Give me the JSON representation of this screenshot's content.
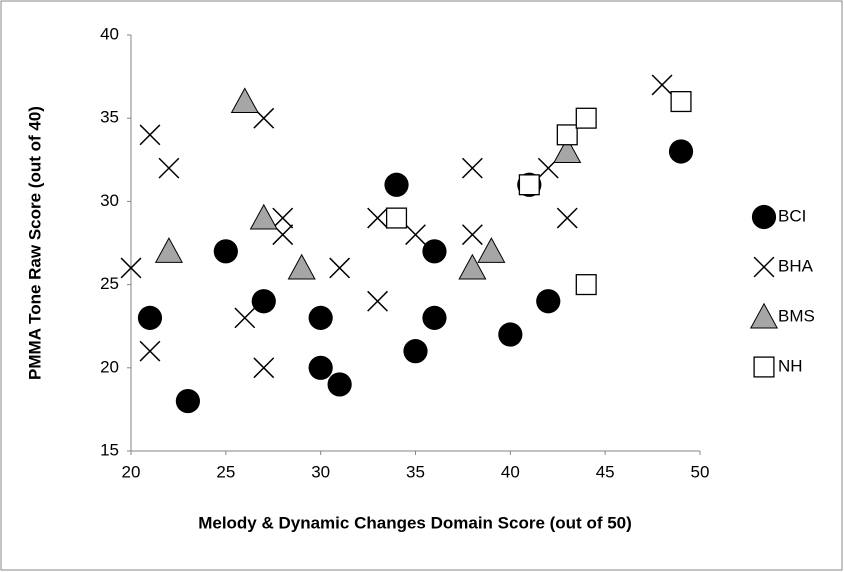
{
  "chart_data": {
    "type": "scatter",
    "xlabel": "Melody & Dynamic Changes Domain Score (out of 50)",
    "ylabel": "PMMA Tone Raw Score (out of 40)",
    "xlim": [
      20,
      50
    ],
    "xticks": [
      20,
      25,
      30,
      35,
      40,
      45,
      50
    ],
    "ylim": [
      15,
      40
    ],
    "yticks": [
      15,
      20,
      25,
      30,
      35,
      40
    ],
    "grid": false,
    "legend": "right",
    "series": [
      {
        "name": "BCI",
        "marker": "circle",
        "color": "#000000",
        "x": [
          21,
          23,
          25,
          27,
          30,
          30,
          31,
          34,
          35,
          36,
          36,
          40,
          41,
          42,
          49
        ],
        "values": [
          23,
          18,
          27,
          24,
          23,
          20,
          19,
          31,
          21,
          27,
          23,
          22,
          31,
          24,
          33
        ]
      },
      {
        "name": "BHA",
        "marker": "x",
        "color": "#000000",
        "x": [
          20,
          21,
          21,
          22,
          26,
          27,
          27,
          28,
          28,
          31,
          33,
          33,
          35,
          38,
          38,
          42,
          43,
          48
        ],
        "values": [
          26,
          34,
          21,
          32,
          23,
          35,
          20,
          29,
          28,
          26,
          29,
          24,
          28,
          32,
          28,
          32,
          29,
          37
        ]
      },
      {
        "name": "BMS",
        "marker": "triangle",
        "color": "#a6a6a6",
        "x": [
          22,
          26,
          27,
          29,
          38,
          39,
          43
        ],
        "values": [
          27,
          36,
          29,
          26,
          26,
          27,
          33
        ]
      },
      {
        "name": "NH",
        "marker": "square",
        "color": "#ffffff",
        "x": [
          34,
          41,
          43,
          44,
          44,
          49
        ],
        "values": [
          29,
          31,
          34,
          35,
          25,
          36
        ]
      }
    ]
  }
}
